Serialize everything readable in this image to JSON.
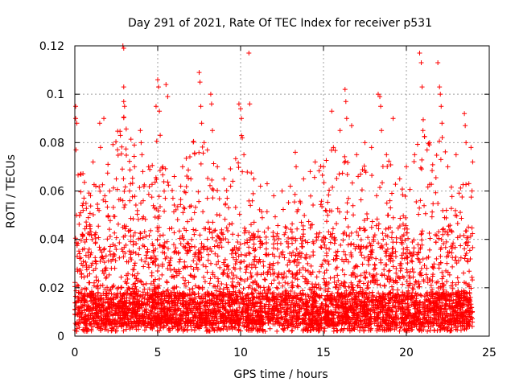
{
  "chart_data": {
    "type": "scatter",
    "title": "Day 291 of 2021, Rate Of TEC Index for receiver p531",
    "xlabel": "GPS time / hours",
    "ylabel": "ROTI / TECUs",
    "xlim": [
      0,
      25
    ],
    "ylim": [
      0,
      0.12
    ],
    "xticks": [
      0,
      5,
      10,
      15,
      20,
      25
    ],
    "yticks": [
      0,
      0.02,
      0.04,
      0.06,
      0.08,
      0.1,
      0.12
    ],
    "xtick_labels": [
      "0",
      "5",
      "10",
      "15",
      "20",
      "25"
    ],
    "ytick_labels": [
      "0",
      "0.02",
      "0.04",
      "0.06",
      "0.08",
      "0.1",
      "0.12"
    ],
    "grid": true,
    "marker": "+",
    "color": "#ff0000",
    "x_range_data": [
      0,
      24
    ],
    "series": [
      {
        "name": "",
        "points": [
          [
            0.05,
            0.095
          ],
          [
            0.05,
            0.09
          ],
          [
            0.07,
            0.077
          ],
          [
            0.1,
            0.05
          ],
          [
            0.12,
            0.088
          ],
          [
            0.35,
            0.051
          ],
          [
            0.5,
            0.052
          ],
          [
            0.7,
            0.04
          ],
          [
            0.9,
            0.046
          ],
          [
            1.1,
            0.072
          ],
          [
            1.5,
            0.088
          ],
          [
            1.55,
            0.078
          ],
          [
            1.75,
            0.09
          ],
          [
            2.0,
            0.071
          ],
          [
            2.1,
            0.06
          ],
          [
            2.5,
            0.065
          ],
          [
            2.9,
            0.12
          ],
          [
            2.95,
            0.119
          ],
          [
            2.95,
            0.103
          ],
          [
            2.95,
            0.097
          ],
          [
            3.0,
            0.095
          ],
          [
            3.3,
            0.06
          ],
          [
            3.6,
            0.07
          ],
          [
            3.95,
            0.085
          ],
          [
            4.0,
            0.08
          ],
          [
            4.05,
            0.075
          ],
          [
            4.1,
            0.068
          ],
          [
            4.45,
            0.07
          ],
          [
            4.9,
            0.095
          ],
          [
            5.0,
            0.106
          ],
          [
            5.05,
            0.103
          ],
          [
            5.1,
            0.093
          ],
          [
            5.15,
            0.083
          ],
          [
            5.3,
            0.07
          ],
          [
            5.5,
            0.104
          ],
          [
            5.6,
            0.099
          ],
          [
            6.0,
            0.066
          ],
          [
            6.5,
            0.07
          ],
          [
            7.0,
            0.065
          ],
          [
            7.5,
            0.109
          ],
          [
            7.55,
            0.105
          ],
          [
            7.6,
            0.095
          ],
          [
            7.65,
            0.088
          ],
          [
            7.8,
            0.08
          ],
          [
            8.2,
            0.1
          ],
          [
            8.25,
            0.096
          ],
          [
            8.3,
            0.085
          ],
          [
            8.6,
            0.07
          ],
          [
            9.0,
            0.065
          ],
          [
            9.4,
            0.062
          ],
          [
            9.9,
            0.096
          ],
          [
            10.0,
            0.094
          ],
          [
            10.05,
            0.09
          ],
          [
            10.1,
            0.082
          ],
          [
            10.2,
            0.075
          ],
          [
            10.5,
            0.117
          ],
          [
            10.55,
            0.096
          ],
          [
            10.8,
            0.065
          ],
          [
            11.2,
            0.062
          ],
          [
            11.6,
            0.063
          ],
          [
            12.0,
            0.058
          ],
          [
            12.5,
            0.06
          ],
          [
            13.0,
            0.062
          ],
          [
            13.3,
            0.076
          ],
          [
            13.35,
            0.07
          ],
          [
            13.8,
            0.065
          ],
          [
            14.2,
            0.068
          ],
          [
            14.5,
            0.072
          ],
          [
            15.0,
            0.07
          ],
          [
            15.5,
            0.093
          ],
          [
            15.6,
            0.078
          ],
          [
            16.0,
            0.085
          ],
          [
            16.3,
            0.102
          ],
          [
            16.35,
            0.097
          ],
          [
            16.4,
            0.09
          ],
          [
            16.7,
            0.087
          ],
          [
            17.0,
            0.075
          ],
          [
            17.5,
            0.08
          ],
          [
            17.9,
            0.078
          ],
          [
            18.3,
            0.1
          ],
          [
            18.4,
            0.099
          ],
          [
            18.45,
            0.095
          ],
          [
            18.5,
            0.085
          ],
          [
            18.8,
            0.075
          ],
          [
            19.2,
            0.09
          ],
          [
            19.6,
            0.065
          ],
          [
            20.0,
            0.07
          ],
          [
            20.5,
            0.075
          ],
          [
            20.8,
            0.117
          ],
          [
            20.9,
            0.113
          ],
          [
            20.95,
            0.103
          ],
          [
            21.0,
            0.085
          ],
          [
            21.4,
            0.08
          ],
          [
            21.9,
            0.113
          ],
          [
            22.0,
            0.103
          ],
          [
            22.05,
            0.1
          ],
          [
            22.1,
            0.095
          ],
          [
            22.15,
            0.088
          ],
          [
            22.5,
            0.07
          ],
          [
            23.0,
            0.075
          ],
          [
            23.5,
            0.092
          ],
          [
            23.55,
            0.087
          ],
          [
            23.6,
            0.08
          ],
          [
            23.9,
            0.078
          ],
          [
            24.0,
            0.072
          ]
        ],
        "density_profile": {
          "hours": [
            0,
            1,
            2,
            3,
            4,
            5,
            6,
            7,
            8,
            9,
            10,
            11,
            12,
            13,
            14,
            15,
            16,
            17,
            18,
            19,
            20,
            21,
            22,
            23,
            24
          ],
          "envelope_max": [
            0.095,
            0.075,
            0.09,
            0.12,
            0.085,
            0.106,
            0.07,
            0.109,
            0.1,
            0.07,
            0.117,
            0.065,
            0.06,
            0.076,
            0.072,
            0.093,
            0.102,
            0.08,
            0.1,
            0.09,
            0.07,
            0.117,
            0.113,
            0.075,
            0.08
          ]
        }
      }
    ]
  }
}
